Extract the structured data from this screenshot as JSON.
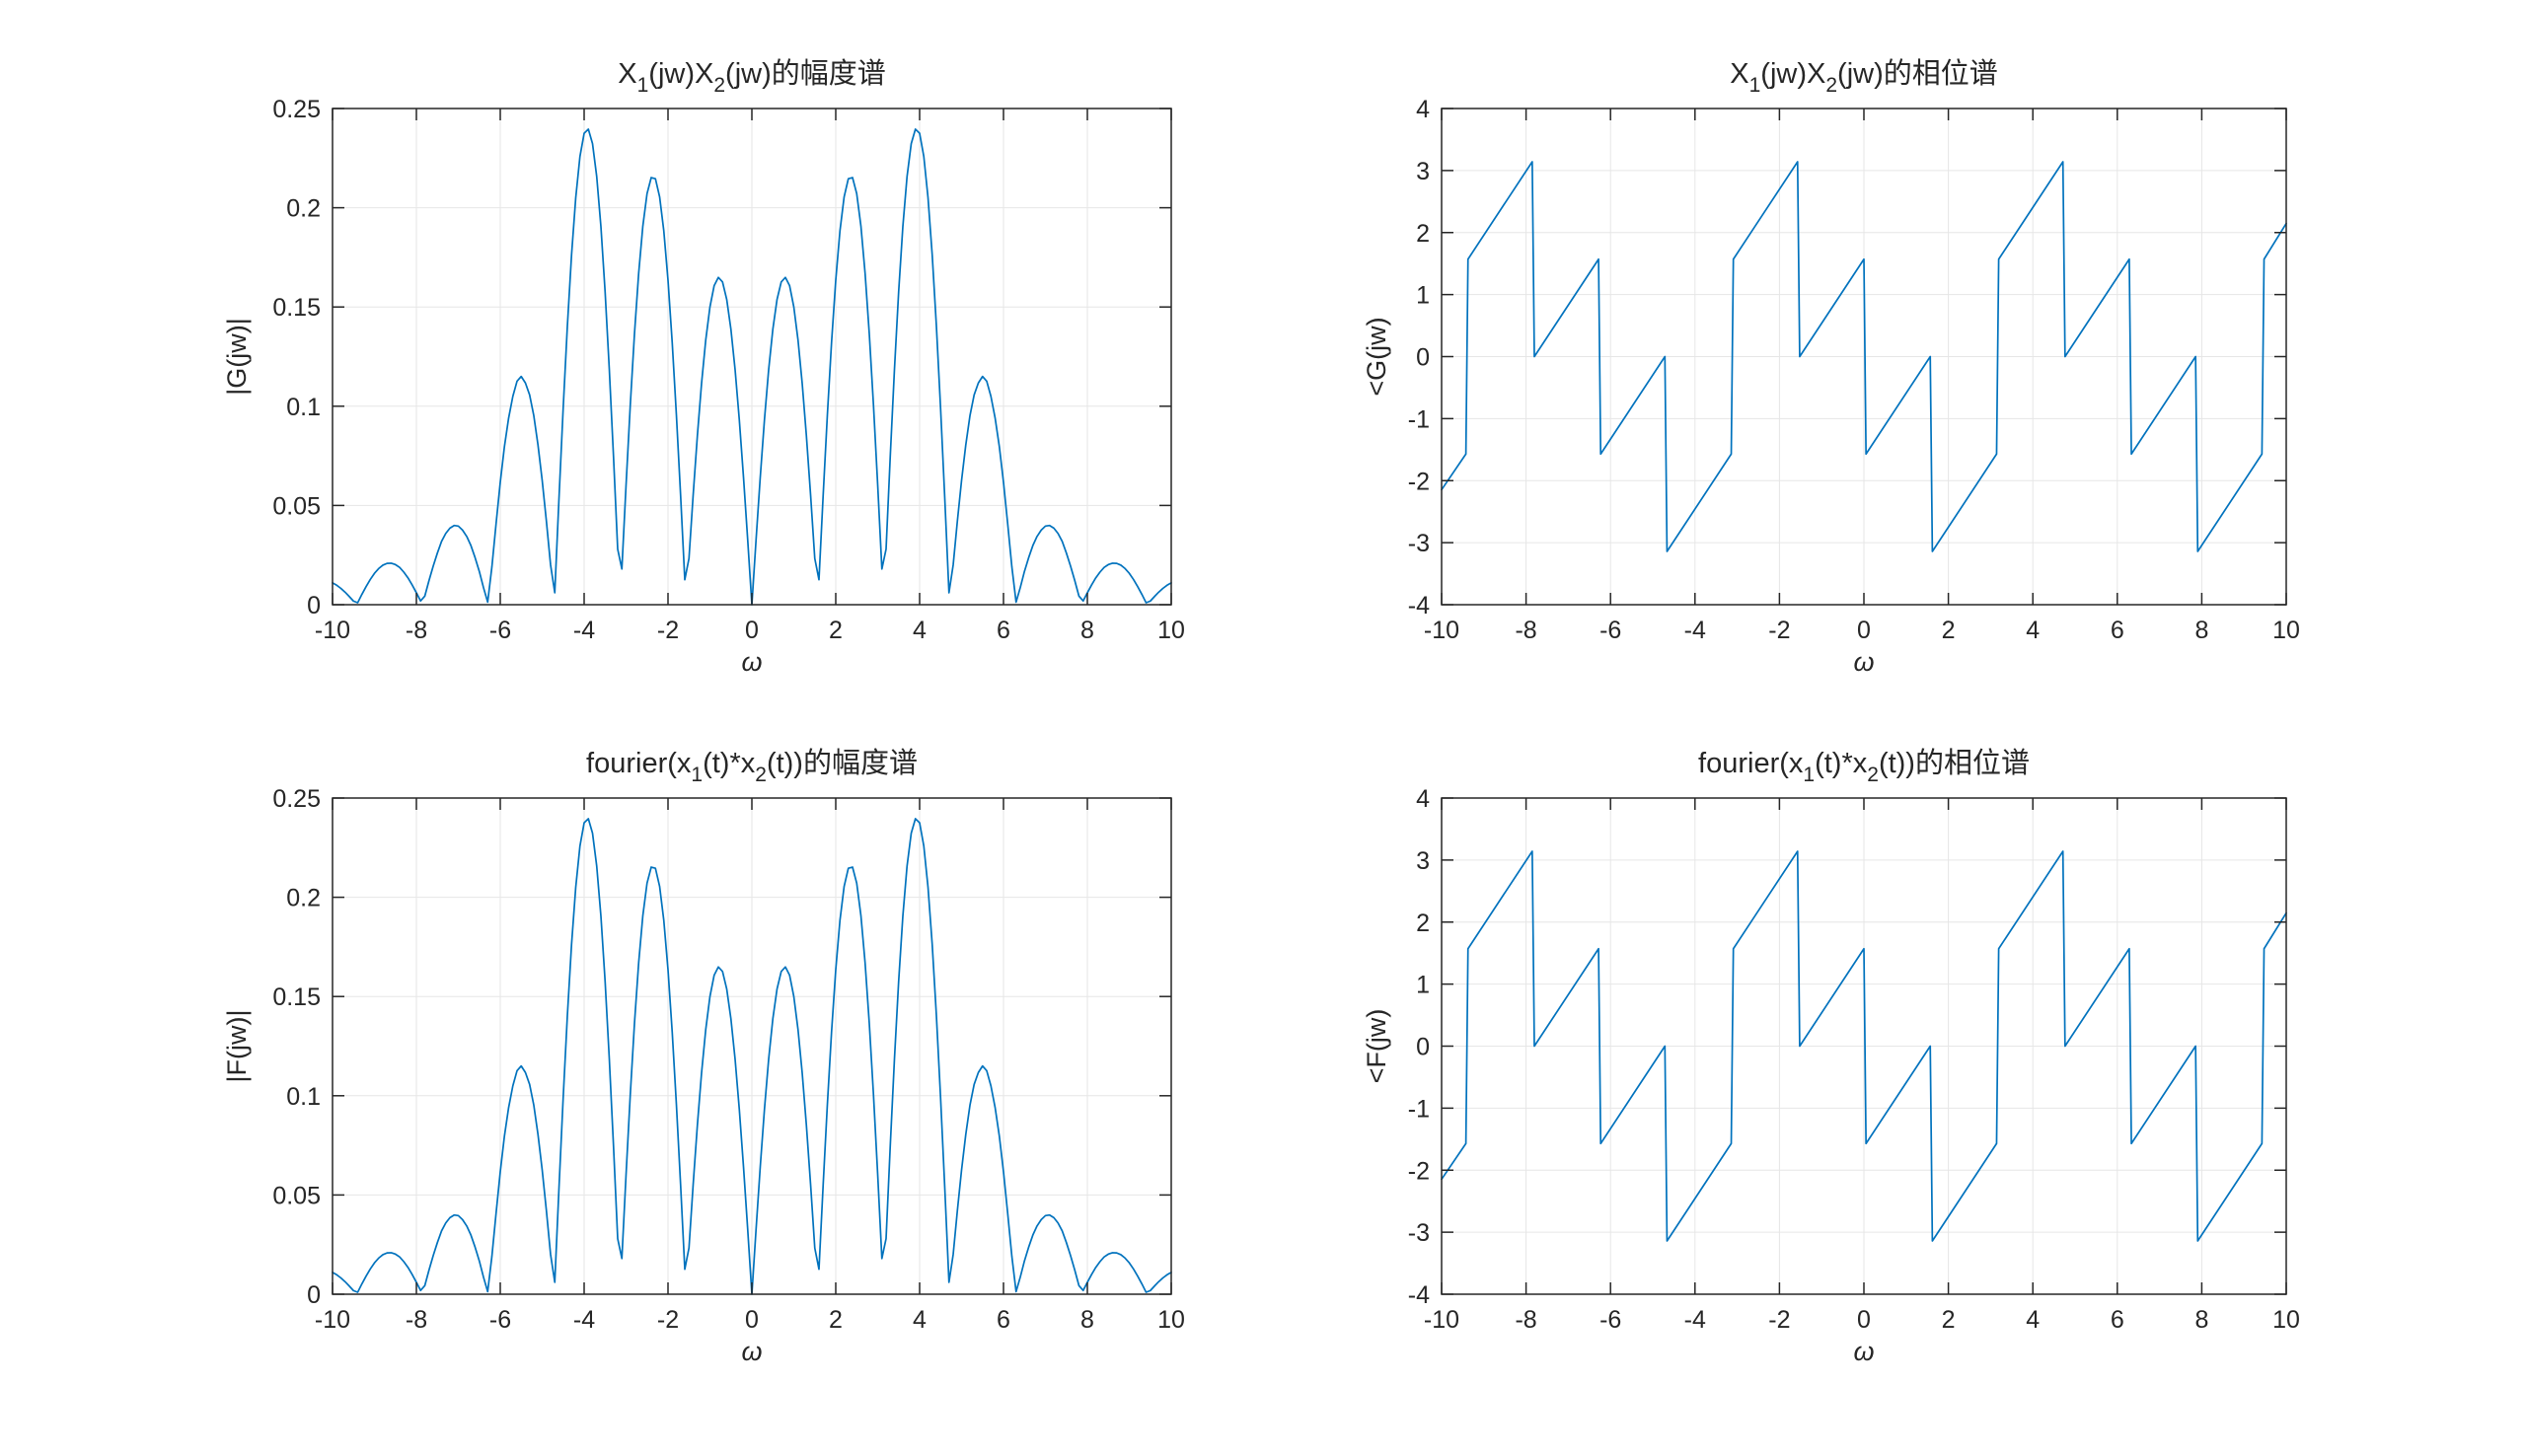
{
  "window": {
    "background": "#ffffff"
  },
  "palette": {
    "line_color": "#0072BD",
    "grid_color": "#e6e6e6",
    "axis_color": "#262626",
    "text_color": "#262626"
  },
  "series_library": {
    "magnitude": {
      "x_start": -10,
      "x_step": 0.1,
      "y": [
        0.011,
        0.0098,
        0.0082,
        0.0063,
        0.0041,
        0.0018,
        0.001,
        0.0052,
        0.0091,
        0.0127,
        0.0158,
        0.0182,
        0.0199,
        0.0208,
        0.0209,
        0.0202,
        0.0188,
        0.0164,
        0.0135,
        0.0099,
        0.006,
        0.0019,
        0.0043,
        0.0121,
        0.0194,
        0.026,
        0.0319,
        0.0359,
        0.0386,
        0.0399,
        0.0396,
        0.0376,
        0.0344,
        0.0298,
        0.0237,
        0.0168,
        0.0086,
        0.0013,
        0.019,
        0.0408,
        0.0617,
        0.0798,
        0.0941,
        0.105,
        0.1126,
        0.115,
        0.1117,
        0.1057,
        0.0952,
        0.0804,
        0.0626,
        0.0421,
        0.02,
        0.006,
        0.0535,
        0.0989,
        0.1404,
        0.1763,
        0.2051,
        0.2258,
        0.2375,
        0.2396,
        0.2323,
        0.2157,
        0.1905,
        0.1577,
        0.1186,
        0.0748,
        0.028,
        0.018,
        0.0604,
        0.1004,
        0.1364,
        0.1669,
        0.1908,
        0.2071,
        0.2152,
        0.2146,
        0.2055,
        0.1883,
        0.1635,
        0.1322,
        0.0956,
        0.0552,
        0.0126,
        0.0233,
        0.0553,
        0.0851,
        0.1115,
        0.1334,
        0.15,
        0.1607,
        0.1649,
        0.1626,
        0.1538,
        0.1388,
        0.1184,
        0.0932,
        0.0643,
        0.0328,
        0.0,
        0.0328,
        0.0643,
        0.0932,
        0.1184,
        0.1388,
        0.1538,
        0.1626,
        0.1649,
        0.1607,
        0.15,
        0.1334,
        0.1115,
        0.0851,
        0.0553,
        0.0233,
        0.0126,
        0.0552,
        0.0956,
        0.1322,
        0.1635,
        0.1883,
        0.2055,
        0.2146,
        0.2152,
        0.2071,
        0.1908,
        0.1669,
        0.1364,
        0.1004,
        0.0604,
        0.018,
        0.028,
        0.0748,
        0.1186,
        0.1577,
        0.1905,
        0.2157,
        0.2323,
        0.2396,
        0.2375,
        0.2258,
        0.2051,
        0.1763,
        0.1404,
        0.0989,
        0.0535,
        0.006,
        0.02,
        0.0421,
        0.0626,
        0.0804,
        0.0952,
        0.1057,
        0.1117,
        0.115,
        0.1126,
        0.105,
        0.0941,
        0.0798,
        0.0617,
        0.0408,
        0.019,
        0.0013,
        0.0086,
        0.0168,
        0.0237,
        0.0298,
        0.0344,
        0.0376,
        0.0396,
        0.0399,
        0.0386,
        0.0359,
        0.0319,
        0.026,
        0.0194,
        0.0121,
        0.0043,
        0.0019,
        0.006,
        0.0099,
        0.0135,
        0.0164,
        0.0188,
        0.0202,
        0.0209,
        0.0208,
        0.0199,
        0.0182,
        0.0158,
        0.0127,
        0.0091,
        0.0052,
        0.001,
        0.0018,
        0.0041,
        0.0063,
        0.0082,
        0.0098,
        0.011
      ],
      "peak_lobes_note": "zeros at multiples of pi/2; lobe peaks at odd multiples of pi/4 with heights 0.165, 0.216, 0.240, 0.115, 0.040, 0.021, 0.012"
    },
    "phase": {
      "vertices": [
        [
          -10.0,
          -2.146
        ],
        [
          -9.4248,
          -1.5708
        ],
        [
          -9.4248,
          1.5708
        ],
        [
          -7.854,
          3.1416
        ],
        [
          -7.854,
          0.0
        ],
        [
          -6.2832,
          1.5708
        ],
        [
          -6.2832,
          -1.5708
        ],
        [
          -4.7124,
          0.0
        ],
        [
          -4.7124,
          -3.1416
        ],
        [
          -3.1416,
          -1.5708
        ],
        [
          -3.1416,
          1.5708
        ],
        [
          -1.5708,
          3.1416
        ],
        [
          -1.5708,
          0.0
        ],
        [
          0.0,
          1.5708
        ],
        [
          0.0,
          -1.5708
        ],
        [
          1.5708,
          0.0
        ],
        [
          1.5708,
          -3.1416
        ],
        [
          3.1416,
          -1.5708
        ],
        [
          3.1416,
          1.5708
        ],
        [
          4.7124,
          3.1416
        ],
        [
          4.7124,
          0.0
        ],
        [
          6.2832,
          1.5708
        ],
        [
          6.2832,
          -1.5708
        ],
        [
          7.854,
          0.0
        ],
        [
          7.854,
          -3.1416
        ],
        [
          9.4248,
          -1.5708
        ],
        [
          9.4248,
          1.5708
        ],
        [
          10.0,
          2.146
        ]
      ],
      "note": "sawtooth phase, linear slope 1 rad/(rad/s), pi jumps at multiples of pi/2, up-jumps at ±pi and ±3pi"
    }
  },
  "chart_data": [
    {
      "id": "g-magnitude",
      "type": "line",
      "title": "X_1(jw)X_2(jw)的幅度谱",
      "title_parts": [
        {
          "t": "X"
        },
        {
          "t": "1",
          "sub": true
        },
        {
          "t": "(jw)X"
        },
        {
          "t": "2",
          "sub": true
        },
        {
          "t": "(jw)的幅度谱"
        }
      ],
      "xlabel": "ω",
      "ylabel": "|G(jw)|",
      "xlim": [
        -10,
        10
      ],
      "ylim": [
        0,
        0.25
      ],
      "xticks": [
        -10,
        -8,
        -6,
        -4,
        -2,
        0,
        2,
        4,
        6,
        8,
        10
      ],
      "xtick_labels": [
        "-10",
        "-8",
        "-6",
        "-4",
        "-2",
        "0",
        "2",
        "4",
        "6",
        "8",
        "10"
      ],
      "yticks": [
        0,
        0.05,
        0.1,
        0.15,
        0.2,
        0.25
      ],
      "ytick_labels": [
        "0",
        "0.05",
        "0.1",
        "0.15",
        "0.2",
        "0.25"
      ],
      "grid": true,
      "legend": null,
      "series_ref": "magnitude"
    },
    {
      "id": "g-phase",
      "type": "line",
      "title": "X_1(jw)X_2(jw)的相位谱",
      "title_parts": [
        {
          "t": "X"
        },
        {
          "t": "1",
          "sub": true
        },
        {
          "t": "(jw)X"
        },
        {
          "t": "2",
          "sub": true
        },
        {
          "t": "(jw)的相位谱"
        }
      ],
      "xlabel": "ω",
      "ylabel": "<G(jw)",
      "xlim": [
        -10,
        10
      ],
      "ylim": [
        -4,
        4
      ],
      "xticks": [
        -10,
        -8,
        -6,
        -4,
        -2,
        0,
        2,
        4,
        6,
        8,
        10
      ],
      "xtick_labels": [
        "-10",
        "-8",
        "-6",
        "-4",
        "-2",
        "0",
        "2",
        "4",
        "6",
        "8",
        "10"
      ],
      "yticks": [
        -4,
        -3,
        -2,
        -1,
        0,
        1,
        2,
        3,
        4
      ],
      "ytick_labels": [
        "-4",
        "-3",
        "-2",
        "-1",
        "0",
        "1",
        "2",
        "3",
        "4"
      ],
      "grid": true,
      "legend": null,
      "series_ref": "phase"
    },
    {
      "id": "f-magnitude",
      "type": "line",
      "title": "fourier(x_1(t)*x_2(t))的幅度谱",
      "title_parts": [
        {
          "t": "fourier(x"
        },
        {
          "t": "1",
          "sub": true
        },
        {
          "t": "(t)*x"
        },
        {
          "t": "2",
          "sub": true
        },
        {
          "t": "(t))的幅度谱"
        }
      ],
      "xlabel": "ω",
      "ylabel": "|F(jw)|",
      "xlim": [
        -10,
        10
      ],
      "ylim": [
        0,
        0.25
      ],
      "xticks": [
        -10,
        -8,
        -6,
        -4,
        -2,
        0,
        2,
        4,
        6,
        8,
        10
      ],
      "xtick_labels": [
        "-10",
        "-8",
        "-6",
        "-4",
        "-2",
        "0",
        "2",
        "4",
        "6",
        "8",
        "10"
      ],
      "yticks": [
        0,
        0.05,
        0.1,
        0.15,
        0.2,
        0.25
      ],
      "ytick_labels": [
        "0",
        "0.05",
        "0.1",
        "0.15",
        "0.2",
        "0.25"
      ],
      "grid": true,
      "legend": null,
      "series_ref": "magnitude"
    },
    {
      "id": "f-phase",
      "type": "line",
      "title": "fourier(x_1(t)*x_2(t))的相位谱",
      "title_parts": [
        {
          "t": "fourier(x"
        },
        {
          "t": "1",
          "sub": true
        },
        {
          "t": "(t)*x"
        },
        {
          "t": "2",
          "sub": true
        },
        {
          "t": "(t))的相位谱"
        }
      ],
      "xlabel": "ω",
      "ylabel": "<F(jw)",
      "xlim": [
        -10,
        10
      ],
      "ylim": [
        -4,
        4
      ],
      "xticks": [
        -10,
        -8,
        -6,
        -4,
        -2,
        0,
        2,
        4,
        6,
        8,
        10
      ],
      "xtick_labels": [
        "-10",
        "-8",
        "-6",
        "-4",
        "-2",
        "0",
        "2",
        "4",
        "6",
        "8",
        "10"
      ],
      "yticks": [
        -4,
        -3,
        -2,
        -1,
        0,
        1,
        2,
        3,
        4
      ],
      "ytick_labels": [
        "-4",
        "-3",
        "-2",
        "-1",
        "0",
        "1",
        "2",
        "3",
        "4"
      ],
      "grid": true,
      "legend": null,
      "series_ref": "phase"
    }
  ]
}
